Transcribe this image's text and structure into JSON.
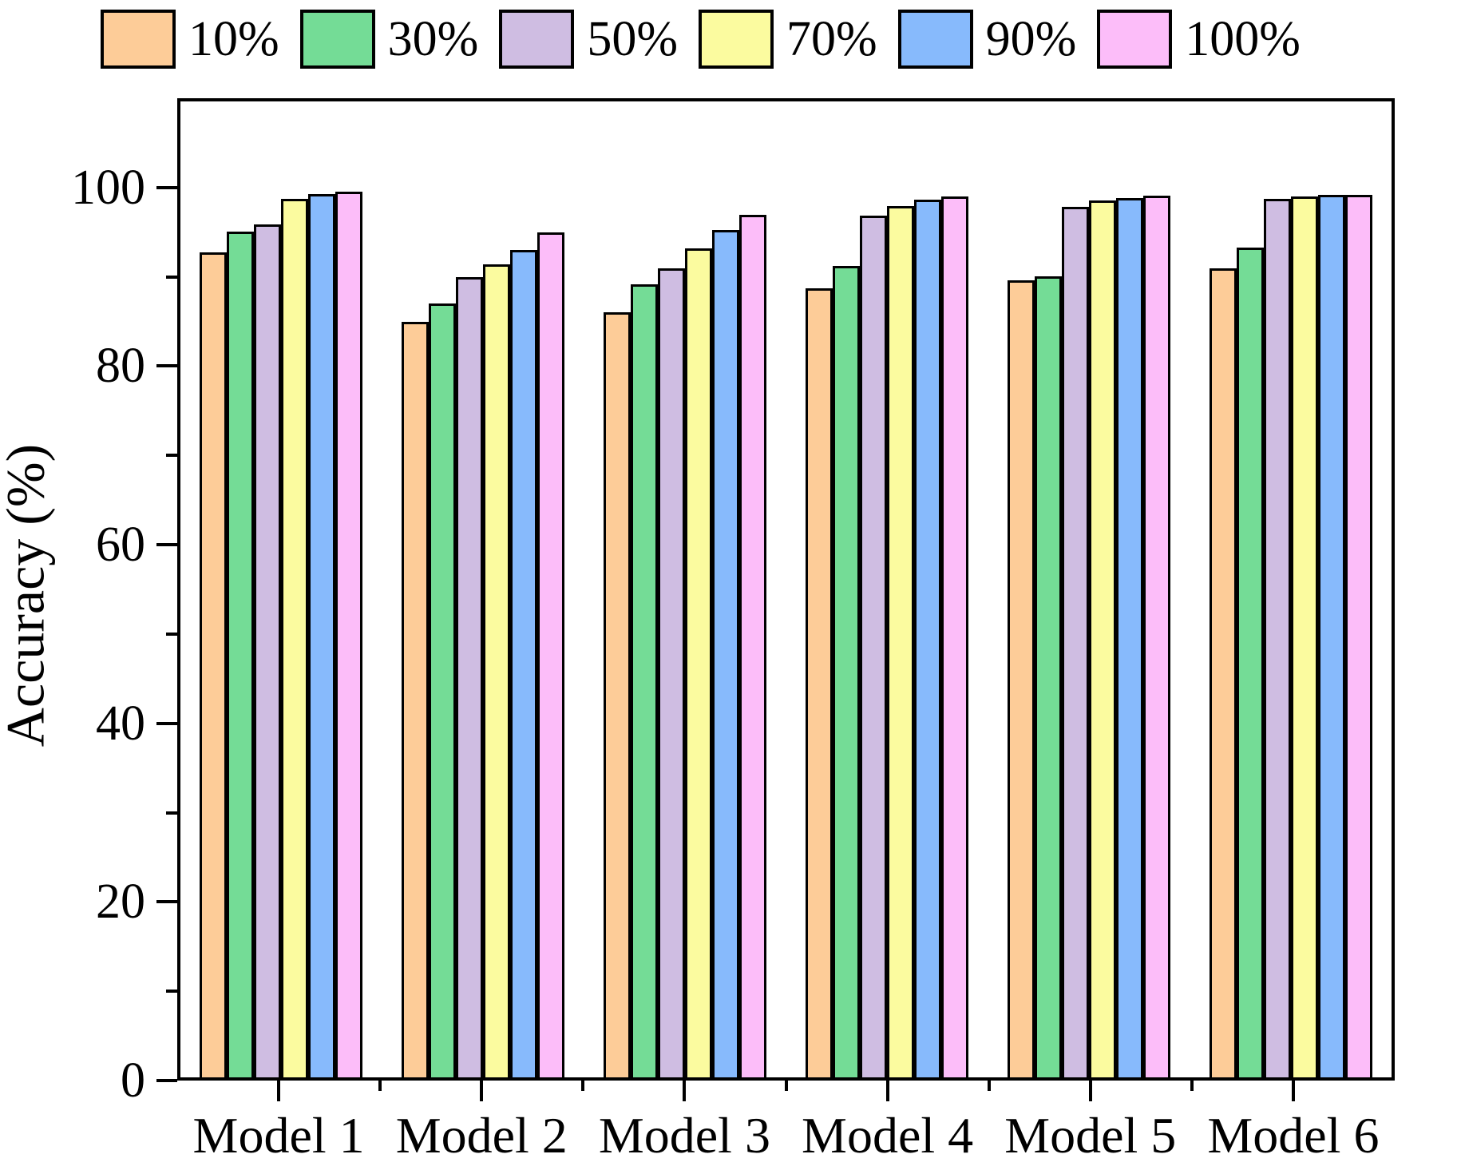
{
  "chart_data": {
    "type": "bar",
    "title": "",
    "xlabel": "",
    "ylabel": "Accuracy (%)",
    "categories": [
      "Model 1",
      "Model 2",
      "Model 3",
      "Model 4",
      "Model 5",
      "Model 6"
    ],
    "series": [
      {
        "name": "10%",
        "color": "#FDCC98",
        "values": [
          93.0,
          85.2,
          86.2,
          88.9,
          89.8,
          91.2
        ]
      },
      {
        "name": "30%",
        "color": "#74DC96",
        "values": [
          95.3,
          87.2,
          89.4,
          91.5,
          90.3,
          93.5
        ]
      },
      {
        "name": "50%",
        "color": "#CFBDE2",
        "values": [
          96.1,
          90.2,
          91.2,
          97.1,
          98.1,
          99.0
        ]
      },
      {
        "name": "70%",
        "color": "#FBFB9F",
        "values": [
          99.0,
          91.6,
          93.4,
          98.2,
          98.8,
          99.3
        ]
      },
      {
        "name": "90%",
        "color": "#87BAFC",
        "values": [
          99.6,
          93.3,
          95.5,
          98.9,
          99.1,
          99.5
        ]
      },
      {
        "name": "100%",
        "color": "#FCBDF9",
        "values": [
          99.8,
          95.2,
          97.2,
          99.3,
          99.4,
          99.5
        ]
      }
    ],
    "ylim": [
      0,
      110
    ],
    "yticks_major": [
      0,
      20,
      40,
      60,
      80,
      100
    ],
    "yticks_minor": [
      10,
      30,
      50,
      70,
      90
    ],
    "legend_position": "top",
    "grid": false,
    "axis_color": "#000000",
    "bar_border_color": "#000000"
  }
}
